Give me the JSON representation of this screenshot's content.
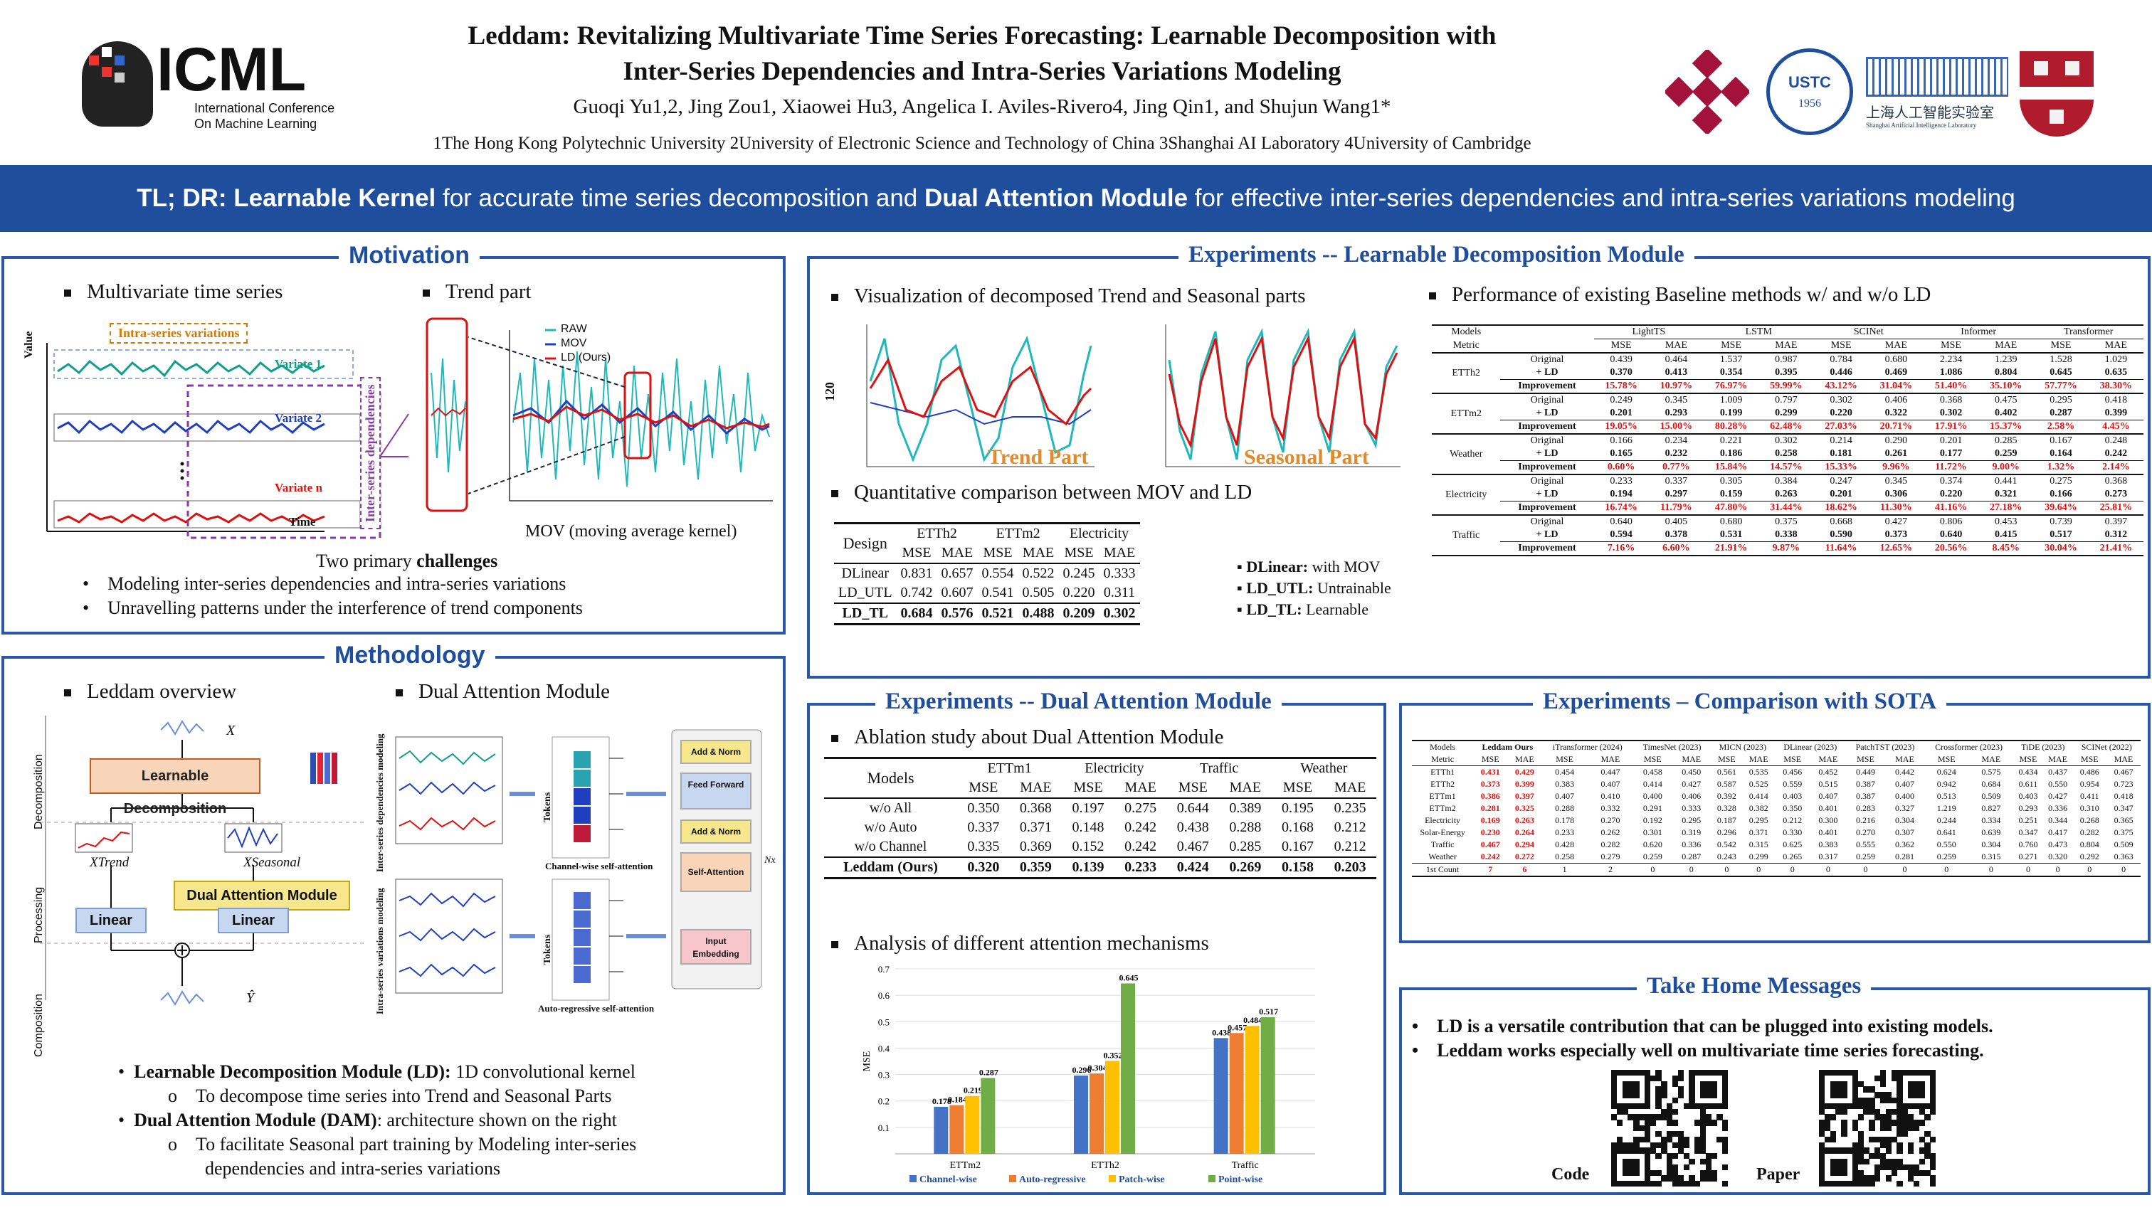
{
  "header": {
    "logo_text": "ICML",
    "logo_sub1": "International Conference",
    "logo_sub2": "On Machine Learning",
    "title_line1": "Leddam: Revitalizing Multivariate Time Series Forecasting: Learnable Decomposition with",
    "title_line2": "Inter-Series Dependencies and Intra-Series Variations Modeling",
    "authors": "Guoqi Yu1,2, Jing Zou1, Xiaowei Hu3, Angelica I. Aviles-Rivero4,  Jing Qin1, and Shujun Wang1*",
    "affiliations": "1The Hong Kong Polytechnic University  2University of Electronic Science and Technology of China 3Shanghai AI Laboratory  4University of Cambridge",
    "logo_ustc": "USTC",
    "logo_ustc_year": "1956",
    "logo_shailab_cn": "上海人工智能实验室",
    "logo_shailab_en": "Shanghai Artificial Intelligence Laboratory"
  },
  "banner": {
    "prefix": "TL; DR:  ",
    "b1": "Learnable Kernel",
    "t1": " for accurate time series decomposition and ",
    "b2": "Dual Attention Module",
    "t2": " for effective inter-series dependencies and intra-series variations modeling"
  },
  "motivation": {
    "title": "Motivation",
    "b1": "Multivariate time series",
    "b2": "Trend part",
    "intra_label": "Intra-series variations",
    "inter_label": "Inter-series dependencies",
    "var1": "Variate 1",
    "var2": "Variate 2",
    "varn": "Variate n",
    "value": "Value",
    "time": "Time",
    "legend": [
      "RAW",
      "MOV",
      "LD (Ours)"
    ],
    "mov_caption": "MOV (moving average kernel)",
    "challenges_pre": "Two primary ",
    "challenges_bold": "challenges",
    "c1": "Modeling inter-series dependencies and intra-series variations",
    "c2": "Unravelling patterns under the interference of trend components"
  },
  "methodology": {
    "title": "Methodology",
    "b1": "Leddam overview",
    "b2": "Dual Attention Module",
    "learnable_decomp": "Learnable Decomposition",
    "dam": "Dual Attention Module",
    "linear": "Linear",
    "stages": [
      "Decomposition",
      "Processing",
      "Composition"
    ],
    "x_label": "X",
    "xt_label": "XTrend",
    "xs_label": "XSeasonal",
    "y_label": "Ŷ",
    "channel_label": "Channel-wise self-attention",
    "auto_label": "Auto-regressive self-attention",
    "tokens": "Tokens",
    "inter_mod": "Inter-series dependencies modeling",
    "intra_mod": "Intra-series variations modeling",
    "blocks": [
      "Add & Norm",
      "Feed Forward",
      "Add & Norm",
      "Self-Attention",
      "Input Embedding"
    ],
    "nx": "Nx",
    "ld_bold": "Learnable Decomposition Module (LD):",
    "ld_text": " 1D convolutional kernel",
    "ld_sub": "To decompose time series into Trend and Seasonal Parts",
    "dam_bold": "Dual Attention Module (DAM)",
    "dam_text": ": architecture shown on the right",
    "dam_sub1": "To facilitate Seasonal part training by Modeling inter-series",
    "dam_sub2": "dependencies and intra-series variations"
  },
  "exp_ld": {
    "title": "Experiments -- Learnable Decomposition Module",
    "b1": "Visualization of decomposed Trend and Seasonal parts",
    "b2": "Performance of existing Baseline methods w/ and w/o LD",
    "trend_part": "Trend Part",
    "seasonal_part": "Seasonal Part",
    "y120": "120",
    "b3": "Quantitative comparison between MOV and LD",
    "design": "Design",
    "cmp_datasets": [
      "ETTh2",
      "ETTm2",
      "Electricity"
    ],
    "cmp_rows": [
      {
        "name": "DLinear",
        "vals": [
          "0.831",
          "0.657",
          "0.554",
          "0.522",
          "0.245",
          "0.333"
        ]
      },
      {
        "name": "LD_UTL",
        "vals": [
          "0.742",
          "0.607",
          "0.541",
          "0.505",
          "0.220",
          "0.311"
        ]
      },
      {
        "name": "LD_TL",
        "vals": [
          "0.684",
          "0.576",
          "0.521",
          "0.488",
          "0.209",
          "0.302"
        ]
      }
    ],
    "notes": [
      {
        "b": "DLinear:",
        "t": " with MOV"
      },
      {
        "b": "LD_UTL:",
        "t": " Untrainable"
      },
      {
        "b": "LD_TL:",
        "t": " Learnable"
      }
    ],
    "perf_models": [
      "LightTS",
      "LSTM",
      "SCINet",
      "Informer",
      "Transformer"
    ],
    "perf_rows": [
      {
        "ds": "ETTh2",
        "orig": [
          "0.439",
          "0.464",
          "1.537",
          "0.987",
          "0.784",
          "0.680",
          "2.234",
          "1.239",
          "1.528",
          "1.029"
        ],
        "ld": [
          "0.370",
          "0.413",
          "0.354",
          "0.395",
          "0.446",
          "0.469",
          "1.086",
          "0.804",
          "0.645",
          "0.635"
        ],
        "imp": [
          "15.78%",
          "10.97%",
          "76.97%",
          "59.99%",
          "43.12%",
          "31.04%",
          "51.40%",
          "35.10%",
          "57.77%",
          "38.30%"
        ]
      },
      {
        "ds": "ETTm2",
        "orig": [
          "0.249",
          "0.345",
          "1.009",
          "0.797",
          "0.302",
          "0.406",
          "0.368",
          "0.475",
          "0.295",
          "0.418"
        ],
        "ld": [
          "0.201",
          "0.293",
          "0.199",
          "0.299",
          "0.220",
          "0.322",
          "0.302",
          "0.402",
          "0.287",
          "0.399"
        ],
        "imp": [
          "19.05%",
          "15.00%",
          "80.28%",
          "62.48%",
          "27.03%",
          "20.71%",
          "17.91%",
          "15.37%",
          "2.58%",
          "4.45%"
        ]
      },
      {
        "ds": "Weather",
        "orig": [
          "0.166",
          "0.234",
          "0.221",
          "0.302",
          "0.214",
          "0.290",
          "0.201",
          "0.285",
          "0.167",
          "0.248"
        ],
        "ld": [
          "0.165",
          "0.232",
          "0.186",
          "0.258",
          "0.181",
          "0.261",
          "0.177",
          "0.259",
          "0.164",
          "0.242"
        ],
        "imp": [
          "0.60%",
          "0.77%",
          "15.84%",
          "14.57%",
          "15.33%",
          "9.96%",
          "11.72%",
          "9.00%",
          "1.32%",
          "2.14%"
        ]
      },
      {
        "ds": "Electricity",
        "orig": [
          "0.233",
          "0.337",
          "0.305",
          "0.384",
          "0.247",
          "0.345",
          "0.374",
          "0.441",
          "0.275",
          "0.368"
        ],
        "ld": [
          "0.194",
          "0.297",
          "0.159",
          "0.263",
          "0.201",
          "0.306",
          "0.220",
          "0.321",
          "0.166",
          "0.273"
        ],
        "imp": [
          "16.74%",
          "11.79%",
          "47.80%",
          "31.44%",
          "18.62%",
          "11.30%",
          "41.16%",
          "27.18%",
          "39.64%",
          "25.81%"
        ]
      },
      {
        "ds": "Traffic",
        "orig": [
          "0.640",
          "0.405",
          "0.680",
          "0.375",
          "0.668",
          "0.427",
          "0.806",
          "0.453",
          "0.739",
          "0.397"
        ],
        "ld": [
          "0.594",
          "0.378",
          "0.531",
          "0.338",
          "0.590",
          "0.373",
          "0.640",
          "0.415",
          "0.517",
          "0.312"
        ],
        "imp": [
          "7.16%",
          "6.60%",
          "21.91%",
          "9.87%",
          "11.64%",
          "12.65%",
          "20.56%",
          "8.45%",
          "30.04%",
          "21.41%"
        ]
      }
    ],
    "labels": {
      "models": "Models",
      "metric": "Metric",
      "mse": "MSE",
      "mae": "MAE",
      "original": "Original",
      "plus_ld": "+ LD",
      "improvement": "Improvement"
    }
  },
  "exp_dam": {
    "title": "Experiments -- Dual Attention Module",
    "b1": "Ablation study about Dual Attention Module",
    "models": "Models",
    "datasets": [
      "ETTm1",
      "Electricity",
      "Traffic",
      "Weather"
    ],
    "rows": [
      {
        "name": "w/o All",
        "vals": [
          "0.350",
          "0.368",
          "0.197",
          "0.275",
          "0.644",
          "0.389",
          "0.195",
          "0.235"
        ]
      },
      {
        "name": "w/o Auto",
        "vals": [
          "0.337",
          "0.371",
          "0.148",
          "0.242",
          "0.438",
          "0.288",
          "0.168",
          "0.212"
        ]
      },
      {
        "name": "w/o Channel",
        "vals": [
          "0.335",
          "0.369",
          "0.152",
          "0.242",
          "0.467",
          "0.285",
          "0.167",
          "0.212"
        ]
      },
      {
        "name": "Leddam (Ours)",
        "vals": [
          "0.320",
          "0.359",
          "0.139",
          "0.233",
          "0.424",
          "0.269",
          "0.158",
          "0.203"
        ]
      }
    ],
    "b2": "Analysis of different attention mechanisms"
  },
  "chart_data": {
    "type": "bar",
    "title": "Analysis of different attention mechanisms",
    "xlabel": "",
    "ylabel": "MSE",
    "ylim": [
      0,
      0.7
    ],
    "yticks": [
      "0.1",
      "0.2",
      "0.3",
      "0.4",
      "0.5",
      "0.6",
      "0.7"
    ],
    "categories": [
      "ETTm2",
      "ETTh2",
      "Traffic"
    ],
    "series": [
      {
        "name": "Channel-wise",
        "color": "#4472c4",
        "values": [
          0.178,
          0.296,
          0.438
        ]
      },
      {
        "name": "Auto-regressive",
        "color": "#ed7d31",
        "values": [
          0.184,
          0.304,
          0.457
        ]
      },
      {
        "name": "Patch-wise",
        "color": "#ffc000",
        "values": [
          0.219,
          0.352,
          0.484
        ]
      },
      {
        "name": "Point-wise",
        "color": "#70ad47",
        "values": [
          0.287,
          0.645,
          0.517
        ]
      }
    ],
    "data_labels": [
      [
        "0.178",
        "0.184",
        "0.219",
        "0.287"
      ],
      [
        "0.296",
        "0.304",
        "0.352",
        "0.645"
      ],
      [
        "0.438",
        "0.457",
        "0.484",
        "0.517"
      ]
    ]
  },
  "sota": {
    "title": "Experiments – Comparison with SOTA",
    "header": [
      "Models",
      "Leddam Ours",
      "iTransformer (2024)",
      "TimesNet (2023)",
      "MICN (2023)",
      "DLinear (2023)",
      "PatchTST (2023)",
      "Crossformer (2023)",
      "TiDE (2023)",
      "SCINet (2022)"
    ],
    "metric": "Metric",
    "rows": [
      {
        "ds": "ETTh1",
        "v": [
          "0.431",
          "0.429",
          "0.454",
          "0.447",
          "0.458",
          "0.450",
          "0.561",
          "0.535",
          "0.456",
          "0.452",
          "0.449",
          "0.442",
          "0.624",
          "0.575",
          "0.434",
          "0.437",
          "0.486",
          "0.467"
        ]
      },
      {
        "ds": "ETTh2",
        "v": [
          "0.373",
          "0.399",
          "0.383",
          "0.407",
          "0.414",
          "0.427",
          "0.587",
          "0.525",
          "0.559",
          "0.515",
          "0.387",
          "0.407",
          "0.942",
          "0.684",
          "0.611",
          "0.550",
          "0.954",
          "0.723"
        ]
      },
      {
        "ds": "ETTm1",
        "v": [
          "0.386",
          "0.397",
          "0.407",
          "0.410",
          "0.400",
          "0.406",
          "0.392",
          "0.414",
          "0.403",
          "0.407",
          "0.387",
          "0.400",
          "0.513",
          "0.509",
          "0.403",
          "0.427",
          "0.411",
          "0.418"
        ]
      },
      {
        "ds": "ETTm2",
        "v": [
          "0.281",
          "0.325",
          "0.288",
          "0.332",
          "0.291",
          "0.333",
          "0.328",
          "0.382",
          "0.350",
          "0.401",
          "0.283",
          "0.327",
          "1.219",
          "0.827",
          "0.293",
          "0.336",
          "0.310",
          "0.347"
        ]
      },
      {
        "ds": "Electricity",
        "v": [
          "0.169",
          "0.263",
          "0.178",
          "0.270",
          "0.192",
          "0.295",
          "0.187",
          "0.295",
          "0.212",
          "0.300",
          "0.216",
          "0.304",
          "0.244",
          "0.334",
          "0.251",
          "0.344",
          "0.268",
          "0.365"
        ]
      },
      {
        "ds": "Solar-Energy",
        "v": [
          "0.230",
          "0.264",
          "0.233",
          "0.262",
          "0.301",
          "0.319",
          "0.296",
          "0.371",
          "0.330",
          "0.401",
          "0.270",
          "0.307",
          "0.641",
          "0.639",
          "0.347",
          "0.417",
          "0.282",
          "0.375"
        ]
      },
      {
        "ds": "Traffic",
        "v": [
          "0.467",
          "0.294",
          "0.428",
          "0.282",
          "0.620",
          "0.336",
          "0.542",
          "0.315",
          "0.625",
          "0.383",
          "0.555",
          "0.362",
          "0.550",
          "0.304",
          "0.760",
          "0.473",
          "0.804",
          "0.509"
        ]
      },
      {
        "ds": "Weather",
        "v": [
          "0.242",
          "0.272",
          "0.258",
          "0.279",
          "0.259",
          "0.287",
          "0.243",
          "0.299",
          "0.265",
          "0.317",
          "0.259",
          "0.281",
          "0.259",
          "0.315",
          "0.271",
          "0.320",
          "0.292",
          "0.363"
        ]
      }
    ],
    "count_label": "1st Count",
    "count": [
      "7",
      "6",
      "1",
      "2",
      "0",
      "0",
      "0",
      "0",
      "0",
      "0",
      "0",
      "0",
      "0",
      "0",
      "0",
      "0",
      "0",
      "0"
    ]
  },
  "take_home": {
    "title": "Take Home Messages",
    "m1": "LD is a versatile contribution that can be plugged into existing models.",
    "m2": "Leddam works especially well on multivariate time series forecasting.",
    "code": "Code",
    "paper": "Paper"
  }
}
